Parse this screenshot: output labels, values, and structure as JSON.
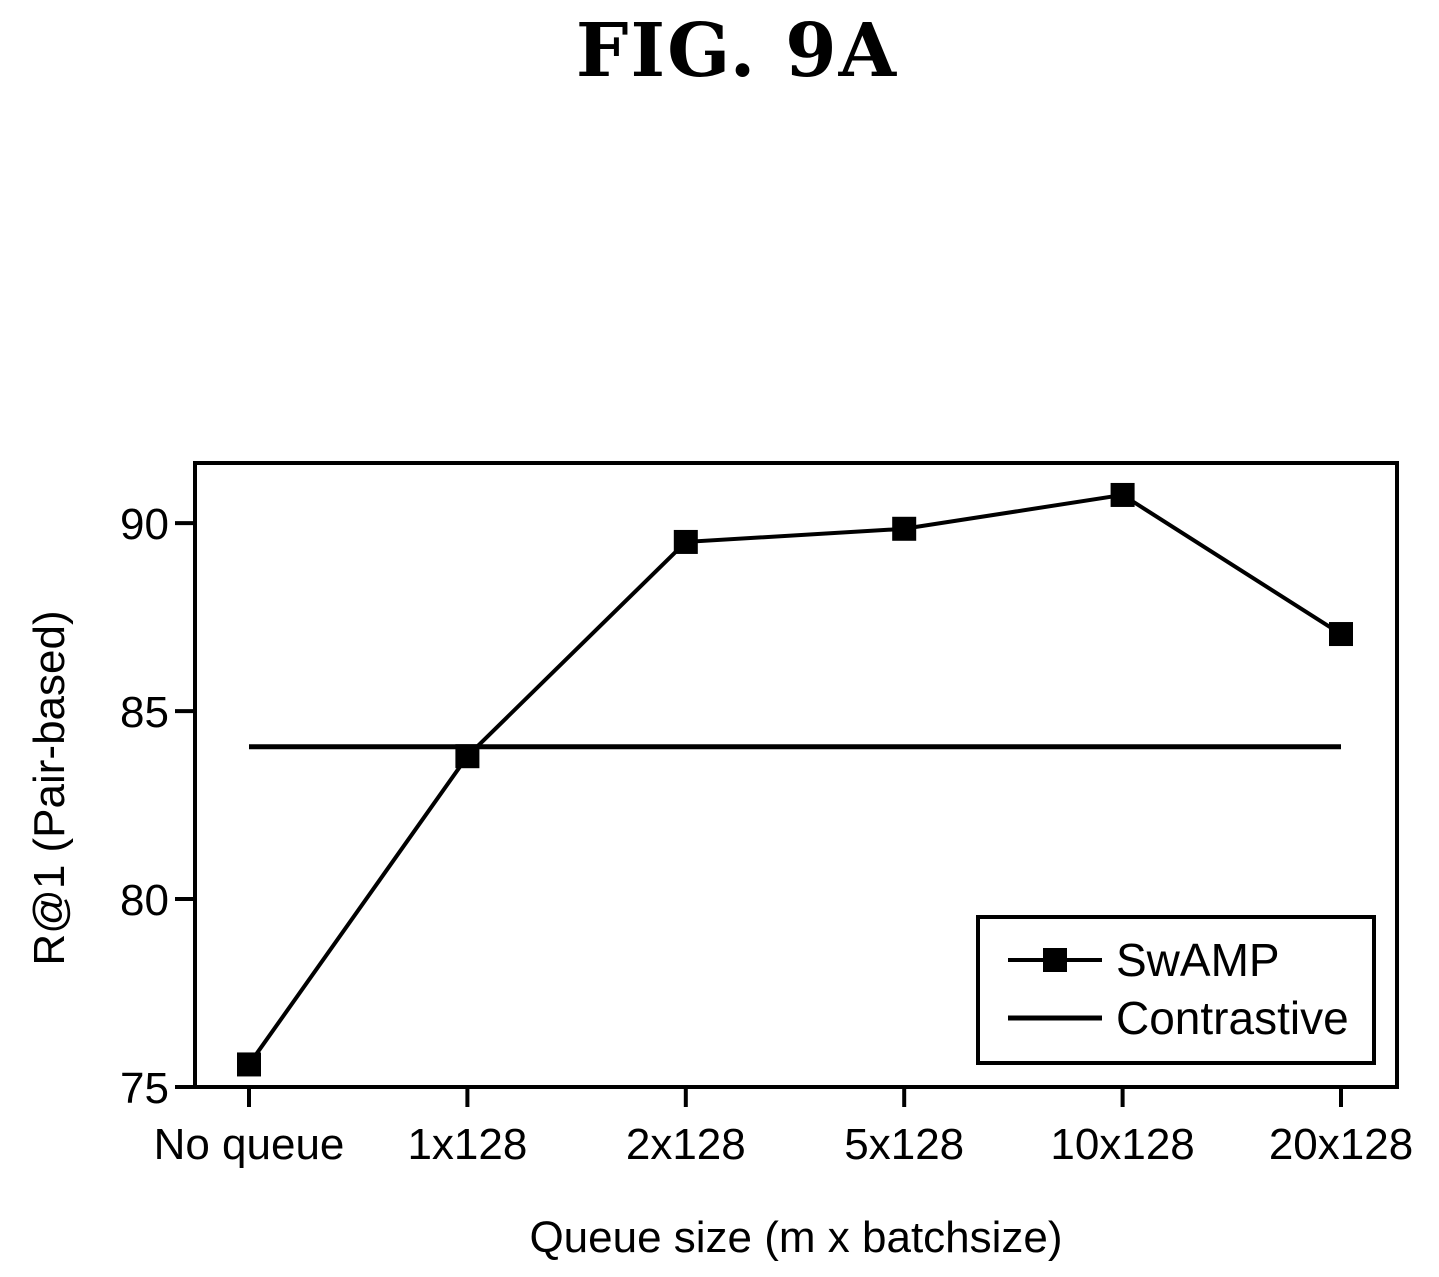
{
  "figure_label": "FIG. 9A",
  "chart_data": {
    "type": "line",
    "categories": [
      "No queue",
      "1x128",
      "2x128",
      "5x128",
      "10x128",
      "20x128"
    ],
    "series": [
      {
        "name": "SwAMP",
        "values": [
          75.6,
          83.8,
          89.5,
          89.85,
          90.75,
          87.05
        ],
        "marker": "square",
        "color": "#000000"
      },
      {
        "name": "Contrastive",
        "values": [
          84.05,
          84.05,
          84.05,
          84.05,
          84.05,
          84.05
        ],
        "marker": "none",
        "color": "#000000"
      }
    ],
    "xlabel": "Queue size (m x batchsize)",
    "ylabel": "R@1 (Pair-based)",
    "ylim": [
      75,
      91.6
    ],
    "yticks": [
      75,
      80,
      85,
      90
    ],
    "ytick_labels": [
      "75",
      "80",
      "85",
      "90"
    ],
    "grid": false,
    "legend_position": "bottom-right"
  }
}
